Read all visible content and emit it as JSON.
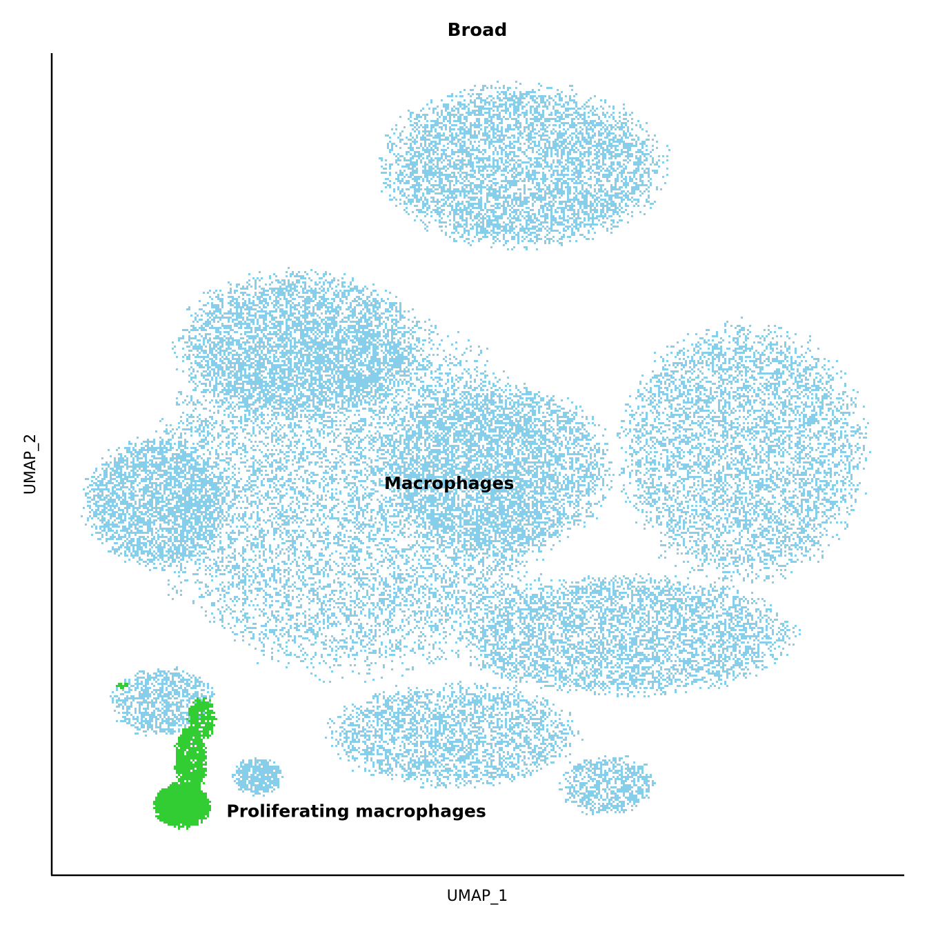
{
  "chart_data": {
    "type": "scatter",
    "title": "Broad",
    "xlabel": "UMAP_1",
    "ylabel": "UMAP_2",
    "ticks": "none",
    "grid": false,
    "legend": "none (labels placed on clusters)",
    "series": [
      {
        "name": "Macrophages",
        "color": "#87CEEB",
        "label_anchor": [
          3.2,
          4.35
        ],
        "regions": [
          {
            "cx": 4.8,
            "cy": 8.25,
            "rx": 1.6,
            "ry": 0.95,
            "n": 5200
          },
          {
            "cx": 2.8,
            "cy": 4.3,
            "rx": 2.3,
            "ry": 2.1,
            "n": 9000
          },
          {
            "cx": 0.5,
            "cy": 4.2,
            "rx": 0.8,
            "ry": 0.75,
            "n": 2500
          },
          {
            "cx": 2.2,
            "cy": 6.1,
            "rx": 1.4,
            "ry": 0.85,
            "n": 4000
          },
          {
            "cx": 4.5,
            "cy": 4.6,
            "rx": 1.3,
            "ry": 1.0,
            "n": 4000
          },
          {
            "cx": 7.4,
            "cy": 4.8,
            "rx": 1.4,
            "ry": 1.5,
            "n": 5000
          },
          {
            "cx": 6.0,
            "cy": 2.6,
            "rx": 1.9,
            "ry": 0.7,
            "n": 4200
          },
          {
            "cx": 4.0,
            "cy": 1.4,
            "rx": 1.4,
            "ry": 0.6,
            "n": 2600
          },
          {
            "cx": 5.8,
            "cy": 0.8,
            "rx": 0.55,
            "ry": 0.35,
            "n": 700
          },
          {
            "cx": 1.7,
            "cy": 0.9,
            "rx": 0.28,
            "ry": 0.22,
            "n": 500
          },
          {
            "cx": 0.6,
            "cy": 1.8,
            "rx": 0.6,
            "ry": 0.4,
            "n": 900
          },
          {
            "cx": 8.2,
            "cy": 5.2,
            "rx": 0.06,
            "ry": 0.03,
            "n": 40
          }
        ]
      },
      {
        "name": "Proliferating macrophages",
        "color": "#32CD32",
        "label_anchor": [
          1.35,
          0.4
        ],
        "regions": [
          {
            "cx": 0.82,
            "cy": 0.55,
            "rx": 0.32,
            "ry": 0.25,
            "n": 2500
          },
          {
            "cx": 0.92,
            "cy": 1.1,
            "rx": 0.18,
            "ry": 0.4,
            "n": 900
          },
          {
            "cx": 1.05,
            "cy": 1.6,
            "rx": 0.16,
            "ry": 0.25,
            "n": 400
          },
          {
            "cx": 0.12,
            "cy": 2.0,
            "rx": 0.06,
            "ry": 0.03,
            "n": 40
          }
        ]
      }
    ],
    "xlim": [
      -0.7,
      9.3
    ],
    "ylim": [
      -0.3,
      9.6
    ]
  }
}
